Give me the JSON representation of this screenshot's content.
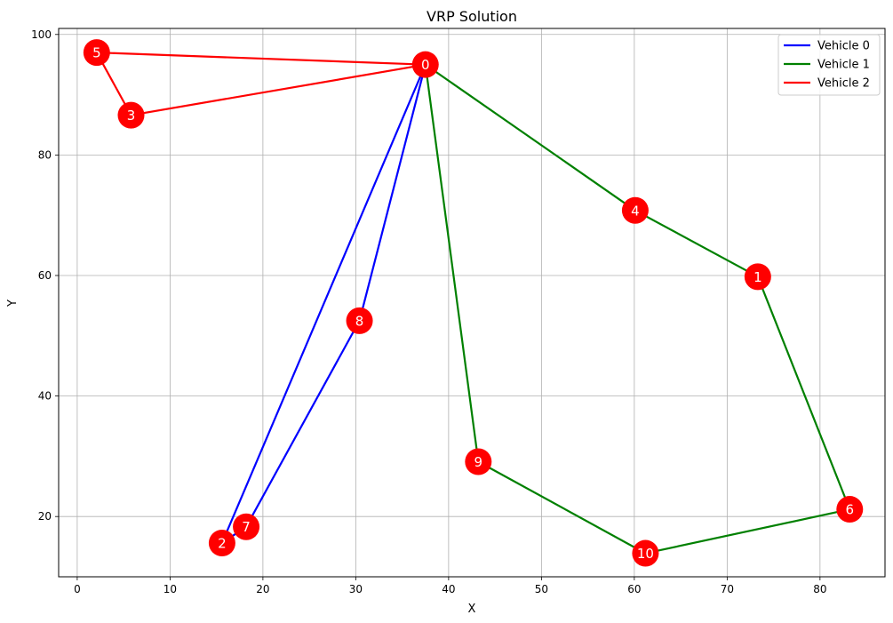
{
  "chart_data": {
    "type": "line",
    "title": "VRP Solution",
    "xlabel": "X",
    "ylabel": "Y",
    "xlim": [
      -2,
      87
    ],
    "ylim": [
      10,
      101
    ],
    "xticks": [
      0,
      10,
      20,
      30,
      40,
      50,
      60,
      70,
      80
    ],
    "yticks": [
      20,
      40,
      60,
      80,
      100
    ],
    "grid": true,
    "legend_position": "top-right",
    "nodes": [
      {
        "id": "0",
        "x": 37.5,
        "y": 95.0
      },
      {
        "id": "1",
        "x": 73.3,
        "y": 59.8
      },
      {
        "id": "2",
        "x": 15.6,
        "y": 15.6
      },
      {
        "id": "3",
        "x": 5.8,
        "y": 86.6
      },
      {
        "id": "4",
        "x": 60.1,
        "y": 70.8
      },
      {
        "id": "5",
        "x": 2.1,
        "y": 97.0
      },
      {
        "id": "6",
        "x": 83.2,
        "y": 21.2
      },
      {
        "id": "7",
        "x": 18.2,
        "y": 18.3
      },
      {
        "id": "8",
        "x": 30.4,
        "y": 52.5
      },
      {
        "id": "9",
        "x": 43.2,
        "y": 29.1
      },
      {
        "id": "10",
        "x": 61.2,
        "y": 13.9
      }
    ],
    "node_color": "#ff0000",
    "series": [
      {
        "name": "Vehicle 0",
        "color": "#0000ff",
        "route": [
          "0",
          "2",
          "7",
          "8",
          "0"
        ]
      },
      {
        "name": "Vehicle 1",
        "color": "#008000",
        "route": [
          "0",
          "9",
          "10",
          "6",
          "1",
          "4",
          "0"
        ]
      },
      {
        "name": "Vehicle 2",
        "color": "#ff0000",
        "route": [
          "0",
          "3",
          "5",
          "0"
        ]
      }
    ]
  }
}
